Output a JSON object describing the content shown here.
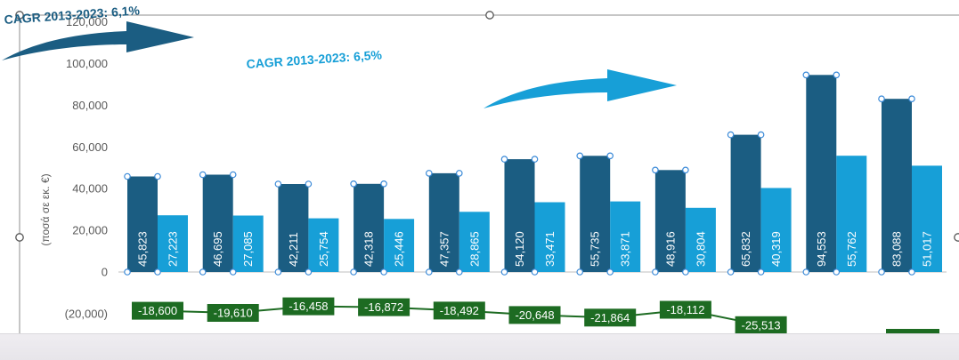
{
  "chart_data": {
    "type": "bar",
    "title": "",
    "xlabel": "",
    "ylabel": "(ποσά σε εκ. €)",
    "yticks": [
      -20000,
      0,
      20000,
      40000,
      60000,
      80000,
      100000,
      120000
    ],
    "ylim": [
      -20000,
      120000
    ],
    "grid": false,
    "legend": "none",
    "series": [
      {
        "values": [
          45823,
          46695,
          42211,
          42318,
          47357,
          54120,
          55735,
          48916,
          65832,
          94553,
          83088
        ],
        "color": "#1b5d82"
      },
      {
        "values": [
          27223,
          27085,
          25754,
          25446,
          28865,
          33471,
          33871,
          30804,
          40319,
          55762,
          51017
        ],
        "color": "#179fd7"
      }
    ],
    "line": {
      "type": "line",
      "values": [
        -18600,
        -19610,
        -16458,
        -16872,
        -18492,
        -20648,
        -21864,
        -18112,
        -25513
      ],
      "color": "#1d6b22"
    },
    "annotations": [
      {
        "text": "CAGR 2013-2023: 6,1%",
        "color": "#1b5d82"
      },
      {
        "text": "CAGR 2013-2023: 6,5%",
        "color": "#179fd7"
      }
    ]
  }
}
